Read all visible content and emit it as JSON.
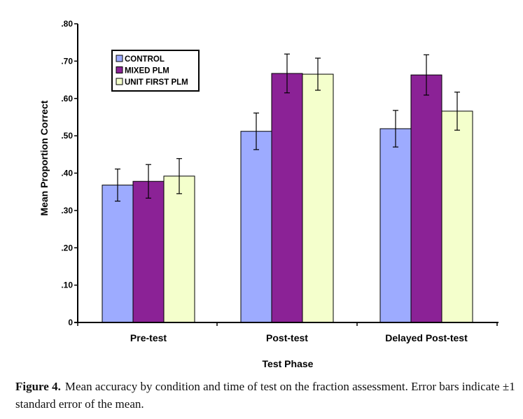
{
  "chart_data": {
    "type": "bar",
    "ylabel": "Mean Proportion Correct",
    "xlabel": "Test Phase",
    "ylim": [
      0,
      0.8
    ],
    "yticks": [
      {
        "value": 0,
        "label": "0"
      },
      {
        "value": 0.1,
        "label": ".10"
      },
      {
        "value": 0.2,
        "label": ".20"
      },
      {
        "value": 0.3,
        "label": ".30"
      },
      {
        "value": 0.4,
        "label": ".40"
      },
      {
        "value": 0.5,
        "label": ".50"
      },
      {
        "value": 0.6,
        "label": ".60"
      },
      {
        "value": 0.7,
        "label": ".70"
      },
      {
        "value": 0.8,
        "label": ".80"
      }
    ],
    "categories": [
      "Pre-test",
      "Post-test",
      "Delayed Post-test"
    ],
    "series": [
      {
        "name": "CONTROL",
        "color": "#9dabff",
        "values": [
          0.368,
          0.512,
          0.519
        ],
        "errors": [
          0.043,
          0.049,
          0.049
        ]
      },
      {
        "name": "MIXED PLM",
        "color": "#8b2296",
        "values": [
          0.378,
          0.667,
          0.663
        ],
        "errors": [
          0.045,
          0.052,
          0.054
        ]
      },
      {
        "name": "UNIT FIRST PLM",
        "color": "#f4ffcc",
        "values": [
          0.392,
          0.665,
          0.566
        ],
        "errors": [
          0.047,
          0.043,
          0.051
        ]
      }
    ],
    "legend_position": "top-left"
  },
  "caption": {
    "label": "Figure 4.",
    "text": "Mean accuracy by condition and time of test on the fraction assessment. Error bars indicate ±1 standard error of the mean."
  }
}
